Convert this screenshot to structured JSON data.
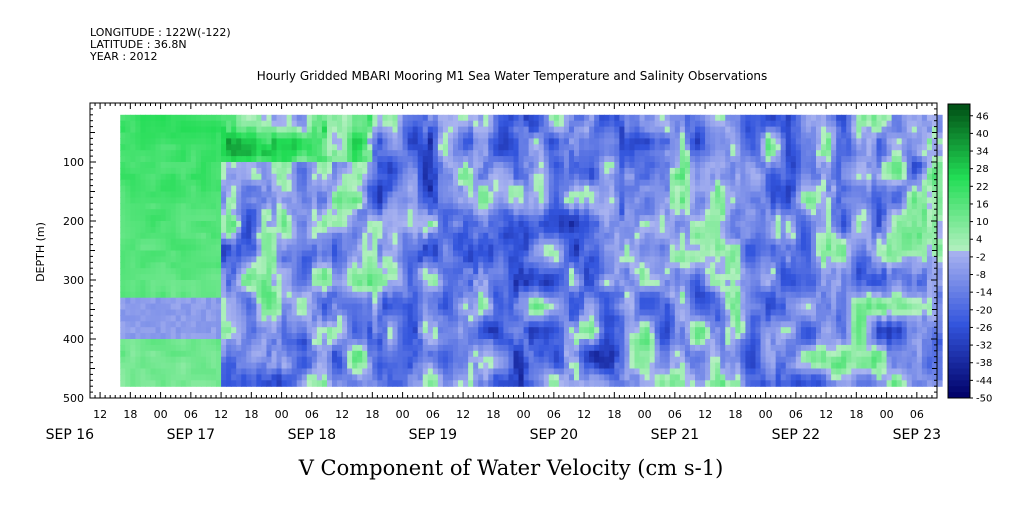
{
  "header": {
    "longitude": "LONGITUDE : 122W(-122)",
    "latitude": "LATITUDE : 36.8N",
    "year": "YEAR : 2012"
  },
  "plot_title": "Hourly Gridded MBARI Mooring M1 Sea Water Temperature and Salinity Observations",
  "variable_title": "V Component of Water Velocity (cm s-1)",
  "colors": {
    "neg_max": "#000066",
    "neg_mid": "#3355dd",
    "neg_min": "#aab4f0",
    "pos_min": "#b4f0c0",
    "pos_mid": "#22dd55",
    "pos_max": "#004d14"
  },
  "chart_data": {
    "type": "heatmap",
    "title": "Hourly Gridded MBARI Mooring M1 Sea Water Temperature and Salinity Observations",
    "xlabel": "",
    "ylabel": "DEPTH (m)",
    "ylim": [
      500,
      0
    ],
    "xlim": [
      "2012-09-16T10:00",
      "2012-09-23T10:00"
    ],
    "yticks": [
      100,
      200,
      300,
      400,
      500
    ],
    "x_hour_ticks": [
      "12",
      "18",
      "00",
      "06",
      "12",
      "18",
      "00",
      "06",
      "12",
      "18",
      "00",
      "06",
      "12",
      "18",
      "00",
      "06",
      "12",
      "18",
      "00",
      "06",
      "12",
      "18",
      "00",
      "06",
      "12",
      "18",
      "00",
      "06",
      "12",
      "18",
      "00",
      "06",
      "12",
      "18",
      "00",
      "06"
    ],
    "x_day_labels": [
      "SEP 16",
      "SEP 17",
      "SEP 18",
      "SEP 19",
      "SEP 20",
      "SEP 21",
      "SEP 22",
      "SEP 23"
    ],
    "colorbar_labels": [
      "46",
      "40",
      "34",
      "28",
      "22",
      "16",
      "10",
      "4",
      "-2",
      "-8",
      "-14",
      "-20",
      "-26",
      "-32",
      "-38",
      "-44",
      "-50"
    ],
    "colorbar_range": [
      -50,
      50
    ],
    "data_start": "2012-09-16T16:00",
    "depth_range": [
      20,
      480
    ],
    "colorbar_label": "V Component of Water Velocity (cm s-1)"
  }
}
